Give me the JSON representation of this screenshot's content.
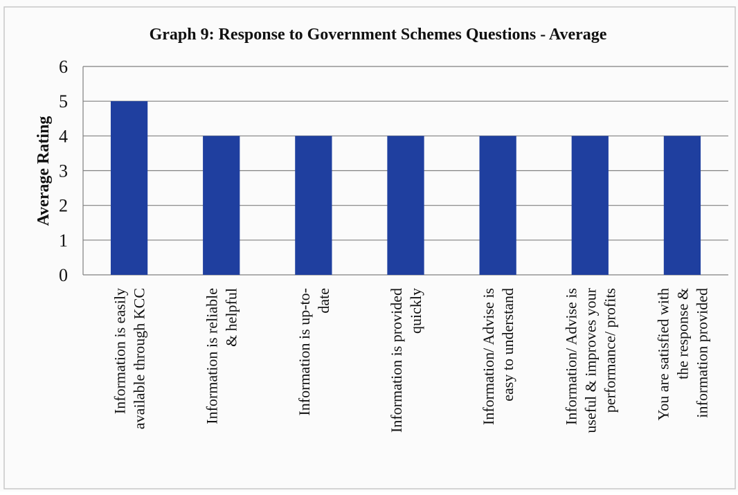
{
  "chart_data": {
    "type": "bar",
    "title": "Graph 9: Response to Government Schemes Questions - Average",
    "xlabel": "",
    "ylabel": "Average Rating",
    "ylim": [
      0,
      6
    ],
    "yticks": [
      0,
      1,
      2,
      3,
      4,
      5,
      6
    ],
    "grid": true,
    "legend": "none",
    "bar_color": "#1f3f9f",
    "categories": [
      [
        "Information is easily",
        "available through KCC"
      ],
      [
        "Information is reliable",
        "& helpful"
      ],
      [
        "Information is up-to-",
        "date"
      ],
      [
        "Information is provided",
        "quickly"
      ],
      [
        "Information/ Advise is",
        "easy to understand"
      ],
      [
        "Information/ Advise is",
        "useful & improves your",
        "performance/ profits"
      ],
      [
        "You are satisfied with",
        "the response &",
        "information provided"
      ]
    ],
    "values": [
      5,
      4,
      4,
      4,
      4,
      4,
      4
    ]
  }
}
